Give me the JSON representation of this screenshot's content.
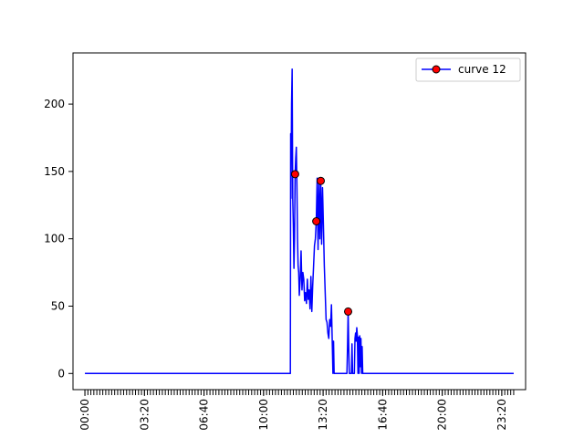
{
  "chart_data": {
    "type": "line",
    "title": "",
    "xlabel": "",
    "ylabel": "",
    "x_unit": "time of day (hh:mm)",
    "xlim": [
      "-00:40",
      "24:40"
    ],
    "ylim": [
      -12,
      238
    ],
    "xticks": [
      "00:00",
      "03:20",
      "06:40",
      "10:00",
      "13:20",
      "16:40",
      "20:00",
      "23:20"
    ],
    "yticks": [
      0,
      50,
      100,
      150,
      200
    ],
    "grid": false,
    "legend_position": "top-right",
    "series": [
      {
        "name": "curve 12",
        "color": "#0000ff",
        "marker_face": "#ff0000",
        "marker_edge": "#000000",
        "points": [
          [
            "00:00",
            0
          ],
          [
            "11:30",
            0
          ],
          [
            "11:31",
            178
          ],
          [
            "11:32",
            130
          ],
          [
            "11:34",
            200
          ],
          [
            "11:36",
            226
          ],
          [
            "11:38",
            130
          ],
          [
            "11:40",
            110
          ],
          [
            "11:42",
            78
          ],
          [
            "11:44",
            100
          ],
          [
            "11:46",
            148
          ],
          [
            "11:48",
            160
          ],
          [
            "11:50",
            168
          ],
          [
            "11:52",
            140
          ],
          [
            "11:54",
            100
          ],
          [
            "11:56",
            80
          ],
          [
            "11:58",
            75
          ],
          [
            "12:00",
            58
          ],
          [
            "12:03",
            70
          ],
          [
            "12:06",
            91
          ],
          [
            "12:09",
            62
          ],
          [
            "12:12",
            75
          ],
          [
            "12:15",
            70
          ],
          [
            "12:18",
            54
          ],
          [
            "12:21",
            60
          ],
          [
            "12:24",
            52
          ],
          [
            "12:27",
            70
          ],
          [
            "12:30",
            55
          ],
          [
            "12:33",
            62
          ],
          [
            "12:36",
            48
          ],
          [
            "12:39",
            72
          ],
          [
            "12:42",
            46
          ],
          [
            "12:45",
            65
          ],
          [
            "12:48",
            80
          ],
          [
            "12:51",
            95
          ],
          [
            "12:54",
            100
          ],
          [
            "12:57",
            113
          ],
          [
            "13:00",
            145
          ],
          [
            "13:03",
            92
          ],
          [
            "13:06",
            142
          ],
          [
            "13:09",
            100
          ],
          [
            "13:12",
            143
          ],
          [
            "13:15",
            96
          ],
          [
            "13:18",
            138
          ],
          [
            "13:21",
            110
          ],
          [
            "13:24",
            80
          ],
          [
            "13:27",
            60
          ],
          [
            "13:30",
            40
          ],
          [
            "13:33",
            38
          ],
          [
            "13:36",
            30
          ],
          [
            "13:39",
            26
          ],
          [
            "13:42",
            40
          ],
          [
            "13:45",
            35
          ],
          [
            "13:48",
            51
          ],
          [
            "13:51",
            20
          ],
          [
            "13:53",
            0
          ],
          [
            "13:55",
            24
          ],
          [
            "13:57",
            0
          ],
          [
            "14:40",
            0
          ],
          [
            "14:42",
            20
          ],
          [
            "14:44",
            46
          ],
          [
            "14:46",
            20
          ],
          [
            "14:48",
            0
          ],
          [
            "14:55",
            0
          ],
          [
            "14:57",
            22
          ],
          [
            "14:59",
            0
          ],
          [
            "15:05",
            0
          ],
          [
            "15:07",
            26
          ],
          [
            "15:09",
            30
          ],
          [
            "15:11",
            24
          ],
          [
            "15:13",
            34
          ],
          [
            "15:15",
            28
          ],
          [
            "15:17",
            0
          ],
          [
            "15:19",
            27
          ],
          [
            "15:21",
            0
          ],
          [
            "15:23",
            28
          ],
          [
            "15:25",
            5
          ],
          [
            "15:27",
            26
          ],
          [
            "15:29",
            0
          ],
          [
            "15:31",
            20
          ],
          [
            "15:33",
            0
          ],
          [
            "24:00",
            0
          ]
        ],
        "markers": [
          [
            "11:46",
            148
          ],
          [
            "12:57",
            113
          ],
          [
            "13:12",
            143
          ],
          [
            "14:44",
            46
          ]
        ]
      }
    ]
  }
}
